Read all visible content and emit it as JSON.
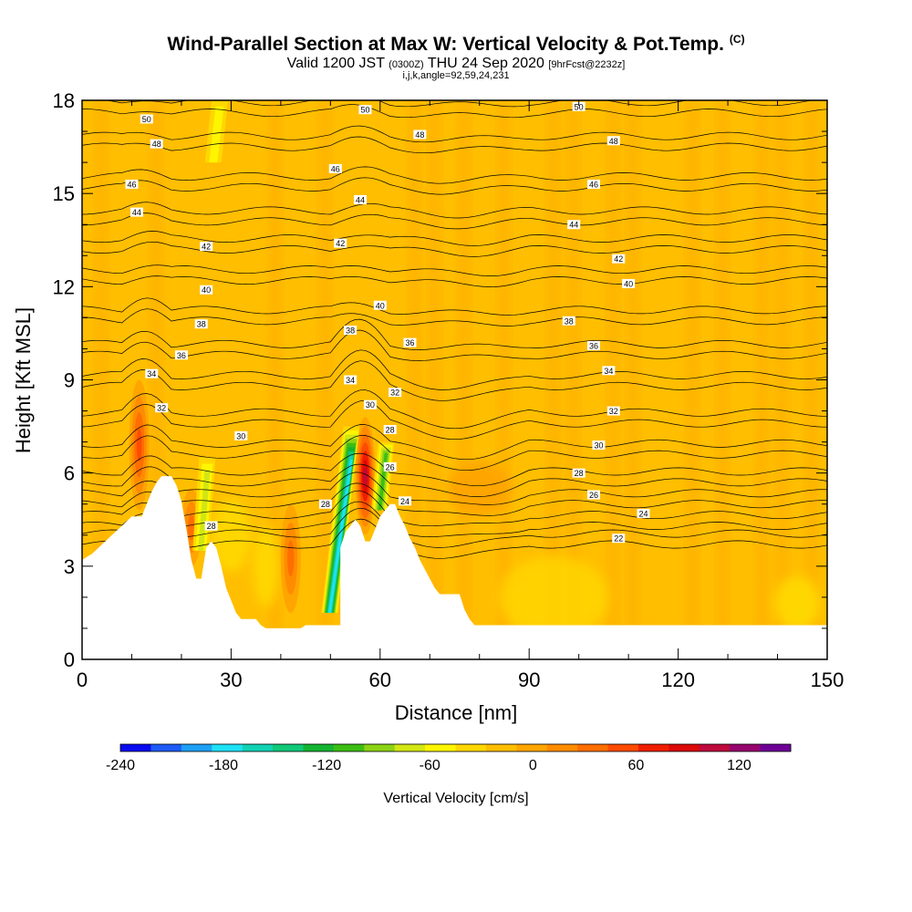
{
  "header": {
    "title": "Wind-Parallel Section at Max W: Vertical Velocity & Pot.Temp.",
    "copyright": "(C)",
    "valid_prefix": "Valid 1200 JST",
    "valid_utc": "(0300Z)",
    "valid_date": "THU 24 Sep 2020",
    "forecast": "[9hrFcst@2232z]",
    "indices": "i,j,k,angle=92,59,24,231"
  },
  "chart_data": {
    "type": "heatmap",
    "xlabel": "Distance [nm]",
    "ylabel": "Height [Kft MSL]",
    "xlim": [
      0,
      150
    ],
    "ylim": [
      0,
      18
    ],
    "x_ticks": [
      0,
      30,
      60,
      90,
      120,
      150
    ],
    "y_ticks": [
      0,
      3,
      6,
      9,
      12,
      15,
      18
    ],
    "terrain": {
      "x": [
        0,
        2,
        4,
        6,
        8,
        10,
        11,
        12,
        13,
        14,
        15,
        16,
        17,
        18,
        19,
        20,
        21,
        22,
        23,
        24,
        25,
        26,
        27,
        28,
        29,
        30,
        31,
        32,
        33,
        34,
        35,
        36,
        37,
        38,
        39,
        40,
        41,
        42,
        43,
        44,
        45,
        46,
        47,
        48,
        49,
        50,
        51,
        52,
        53,
        54,
        55,
        56,
        57,
        58,
        59,
        60,
        61,
        62,
        63,
        64,
        65,
        66,
        67,
        68,
        69,
        70,
        71,
        72,
        73,
        74,
        75,
        76,
        77,
        78,
        79,
        80,
        81,
        82,
        84,
        86,
        88,
        90,
        95,
        100,
        105,
        110,
        115,
        120,
        125,
        130,
        132,
        134,
        136,
        138,
        140,
        142,
        144,
        146,
        148,
        150
      ],
      "y": [
        3.2,
        3.4,
        3.7,
        4.0,
        4.3,
        4.6,
        4.6,
        4.6,
        5.0,
        5.4,
        5.7,
        5.9,
        5.9,
        5.9,
        5.6,
        5.1,
        4.2,
        3.2,
        2.6,
        2.6,
        3.6,
        3.8,
        3.6,
        3.0,
        2.3,
        1.9,
        1.5,
        1.3,
        1.3,
        1.3,
        1.3,
        1.1,
        1.0,
        1.0,
        1.0,
        1.0,
        1.0,
        1.0,
        1.0,
        1.0,
        1.1,
        1.1,
        1.1,
        1.1,
        1.1,
        1.1,
        1.1,
        1.1,
        1.1,
        1.1,
        1.1,
        1.1,
        1.1,
        1.1,
        1.1,
        1.1,
        1.1,
        1.1,
        1.1,
        1.1,
        1.1,
        1.1,
        1.1,
        1.1,
        1.1,
        1.1,
        1.1,
        1.1,
        1.1,
        1.1,
        1.1,
        1.1,
        1.1,
        1.1,
        1.1,
        1.1,
        1.1,
        1.1,
        1.1,
        1.1,
        1.1,
        1.1,
        1.1,
        1.1,
        1.1,
        1.1,
        1.1,
        1.1,
        1.1,
        1.1,
        1.1,
        1.1,
        1.1,
        1.1,
        1.1,
        1.1,
        1.1,
        1.1,
        1.1,
        1.1
      ],
      "x_b": [
        52,
        53,
        54,
        55,
        56,
        57,
        58,
        59,
        60,
        61,
        62,
        63,
        64,
        65,
        66,
        67,
        68,
        69,
        70,
        71,
        72,
        73,
        74,
        75,
        76,
        77,
        78,
        79,
        80,
        81,
        82,
        84,
        86,
        88,
        90,
        95,
        100,
        105,
        110,
        115,
        120,
        125,
        130,
        132,
        134,
        136,
        138,
        140,
        142,
        144,
        146,
        148,
        150
      ],
      "y_b": [
        3.6,
        4.1,
        4.3,
        4.5,
        4.3,
        3.8,
        3.8,
        4.2,
        4.6,
        4.8,
        5.0,
        5.0,
        4.6,
        4.3,
        3.9,
        3.6,
        3.2,
        2.9,
        2.6,
        2.3,
        2.1,
        2.1,
        2.1,
        2.1,
        2.1,
        1.6,
        1.3,
        1.1,
        1.1,
        0.6,
        0.6,
        0.3,
        0.3,
        0.3,
        0.3,
        0.3,
        0.3,
        0.3,
        0.3,
        0.3,
        0.3,
        0.3,
        0.3,
        0.7,
        0.7,
        0.7,
        1.0,
        1.0,
        1.0,
        1.0,
        1.0,
        1.0,
        1.0
      ]
    },
    "contour_labels": [
      {
        "text": "50",
        "x": 13,
        "y": 17.4
      },
      {
        "text": "48",
        "x": 15,
        "y": 16.6
      },
      {
        "text": "46",
        "x": 10,
        "y": 15.3
      },
      {
        "text": "44",
        "x": 11,
        "y": 14.4
      },
      {
        "text": "42",
        "x": 25,
        "y": 13.3
      },
      {
        "text": "40",
        "x": 25,
        "y": 11.9
      },
      {
        "text": "38",
        "x": 24,
        "y": 10.8
      },
      {
        "text": "36",
        "x": 20,
        "y": 9.8
      },
      {
        "text": "34",
        "x": 14,
        "y": 9.2
      },
      {
        "text": "32",
        "x": 16,
        "y": 8.1
      },
      {
        "text": "30",
        "x": 32,
        "y": 7.2
      },
      {
        "text": "28",
        "x": 26,
        "y": 4.3
      },
      {
        "text": "50",
        "x": 57,
        "y": 17.7
      },
      {
        "text": "48",
        "x": 68,
        "y": 16.9
      },
      {
        "text": "46",
        "x": 51,
        "y": 15.8
      },
      {
        "text": "44",
        "x": 56,
        "y": 14.8
      },
      {
        "text": "42",
        "x": 52,
        "y": 13.4
      },
      {
        "text": "40",
        "x": 60,
        "y": 11.4
      },
      {
        "text": "38",
        "x": 54,
        "y": 10.6
      },
      {
        "text": "36",
        "x": 66,
        "y": 10.2
      },
      {
        "text": "34",
        "x": 54,
        "y": 9.0
      },
      {
        "text": "32",
        "x": 63,
        "y": 8.6
      },
      {
        "text": "30",
        "x": 58,
        "y": 8.2
      },
      {
        "text": "28",
        "x": 62,
        "y": 7.4
      },
      {
        "text": "26",
        "x": 62,
        "y": 6.2
      },
      {
        "text": "24",
        "x": 65,
        "y": 5.1
      },
      {
        "text": "28",
        "x": 49,
        "y": 5.0
      },
      {
        "text": "50",
        "x": 100,
        "y": 17.8
      },
      {
        "text": "48",
        "x": 107,
        "y": 16.7
      },
      {
        "text": "46",
        "x": 103,
        "y": 15.3
      },
      {
        "text": "44",
        "x": 99,
        "y": 14.0
      },
      {
        "text": "42",
        "x": 108,
        "y": 12.9
      },
      {
        "text": "40",
        "x": 110,
        "y": 12.1
      },
      {
        "text": "38",
        "x": 98,
        "y": 10.9
      },
      {
        "text": "36",
        "x": 103,
        "y": 10.1
      },
      {
        "text": "34",
        "x": 106,
        "y": 9.3
      },
      {
        "text": "32",
        "x": 107,
        "y": 8.0
      },
      {
        "text": "30",
        "x": 104,
        "y": 6.9
      },
      {
        "text": "28",
        "x": 100,
        "y": 6.0
      },
      {
        "text": "26",
        "x": 103,
        "y": 5.3
      },
      {
        "text": "24",
        "x": 113,
        "y": 4.7
      },
      {
        "text": "22",
        "x": 108,
        "y": 3.9
      }
    ],
    "theta_levels": [
      22,
      24,
      26,
      28,
      30,
      32,
      34,
      36,
      38,
      40,
      42,
      44,
      46,
      48,
      50
    ],
    "updrafts": [
      {
        "x": 11.5,
        "y_bottom": 4.8,
        "y_top": 9.0,
        "w_max": 80
      },
      {
        "x": 57.0,
        "y_bottom": 4.0,
        "y_top": 7.8,
        "w_max": 140
      },
      {
        "x": 42.0,
        "y_bottom": 1.5,
        "y_top": 5.0,
        "w_max": 50
      },
      {
        "x": 22.0,
        "y_bottom": 3.0,
        "y_top": 5.5,
        "w_max": 50
      }
    ],
    "downdrafts": [
      {
        "x": 53.5,
        "y_bottom": 1.5,
        "y_top": 7.5,
        "w_min": -180
      },
      {
        "x": 61.0,
        "y_bottom": 4.8,
        "y_top": 7.0,
        "w_min": -100
      },
      {
        "x": 25.0,
        "y_bottom": 3.5,
        "y_top": 6.5,
        "w_min": -60
      },
      {
        "x": 27.5,
        "y_bottom": 16.0,
        "y_top": 18.0,
        "w_min": -40
      }
    ],
    "colorbar": {
      "label": "Vertical Velocity [cm/s]",
      "min": -240,
      "max": 150,
      "step": 20,
      "tick_values": [
        -240,
        -180,
        -120,
        -60,
        0,
        60,
        120
      ],
      "tick_labels": [
        "-240",
        "-180",
        "-120",
        "-60",
        "0",
        "60",
        "120"
      ],
      "colors": [
        "#0a0af0",
        "#1e5af5",
        "#1ea0f5",
        "#1ee1f5",
        "#12d2b4",
        "#10c878",
        "#14b432",
        "#3cbe14",
        "#8cd214",
        "#d2e614",
        "#fff500",
        "#ffd700",
        "#ffbe00",
        "#ffa500",
        "#ff8c00",
        "#ff6e00",
        "#ff4b00",
        "#f01e00",
        "#dc0a0a",
        "#be0a3c",
        "#96056e",
        "#6e0096"
      ]
    }
  }
}
